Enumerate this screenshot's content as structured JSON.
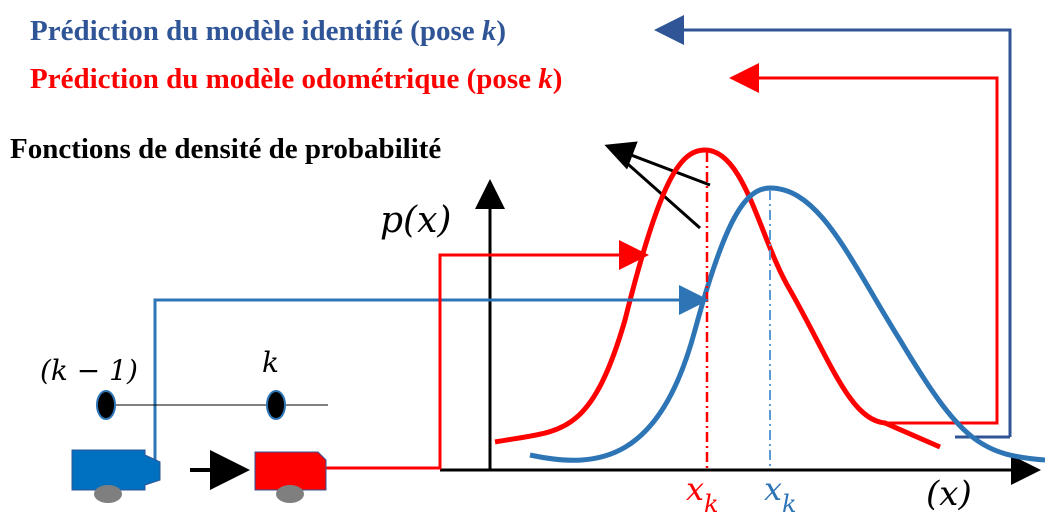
{
  "titles": {
    "identified": {
      "text": "Prédiction du modèle identifié (pose ",
      "var": "k",
      "close": ")"
    },
    "odometric": {
      "text": "Prédiction du modèle odométrique (pose ",
      "var": "k",
      "close": ")"
    },
    "densities": "Fonctions de densité de probabilité"
  },
  "axes": {
    "y_label": "p(x)",
    "x_label": "(x)"
  },
  "poses": {
    "previous": "(k − 1)",
    "current": "k"
  },
  "estimates": {
    "odometric": {
      "main": "x",
      "sub": "k"
    },
    "identified": {
      "main": "x",
      "sub": "k"
    }
  }
}
